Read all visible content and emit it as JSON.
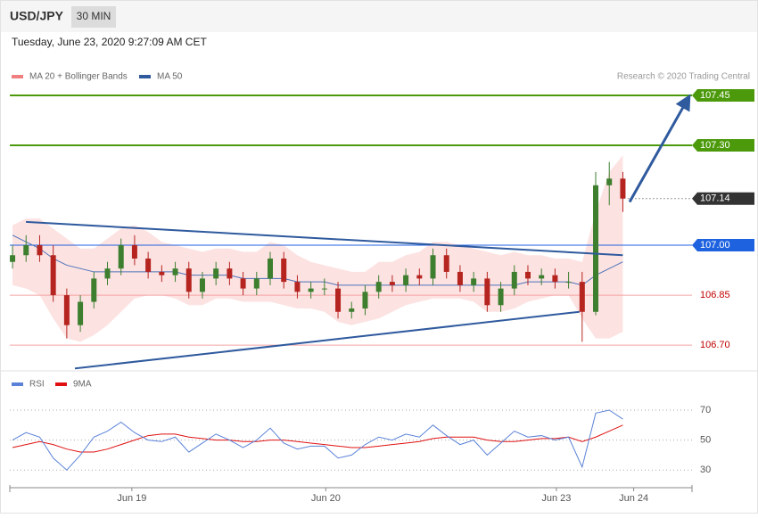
{
  "chart_data": {
    "type": "candlestick",
    "title": "USD/JPY",
    "timeframe": "30 MIN",
    "subtitle": "Tuesday, June 23, 2020 9:27:09 AM CET",
    "credit": "Research © 2020 Trading Central",
    "legend": [
      {
        "name": "MA 20 + Bollinger Bands",
        "color": "#f08080"
      },
      {
        "name": "MA 50",
        "color": "#2f5a9e"
      }
    ],
    "up_color": "#3d7f2f",
    "down_color": "#b5241f",
    "band_color": "#fde2e2",
    "ma50_color": "#4a72b8",
    "xlim": [
      -0.2,
      50.1
    ],
    "xticks": [
      {
        "value": 8.8,
        "label": "Jun 19"
      },
      {
        "value": 23.1,
        "label": "Jun 20"
      },
      {
        "value": 40.1,
        "label": "Jun 23"
      },
      {
        "value": 45.8,
        "label": "Jun 24"
      }
    ],
    "ylim": [
      106.62,
      107.49
    ],
    "open": [
      106.95,
      106.97,
      107.0,
      106.97,
      106.85,
      106.76,
      106.83,
      106.9,
      106.93,
      107.0,
      106.96,
      106.92,
      106.91,
      106.93,
      106.86,
      106.9,
      106.93,
      106.9,
      106.87,
      106.9,
      106.96,
      106.89,
      106.86,
      106.87,
      106.87,
      106.8,
      106.81,
      106.86,
      106.89,
      106.88,
      106.91,
      106.9,
      106.97,
      106.92,
      106.88,
      106.9,
      106.82,
      106.87,
      106.92,
      106.9,
      106.91,
      106.89,
      106.89,
      106.8,
      107.18,
      107.2
    ],
    "high": [
      107.0,
      107.03,
      107.03,
      107.0,
      106.87,
      106.85,
      106.92,
      106.95,
      107.02,
      107.03,
      106.98,
      106.94,
      106.95,
      106.95,
      106.92,
      106.95,
      106.95,
      106.92,
      106.92,
      106.98,
      106.98,
      106.91,
      106.89,
      106.9,
      106.89,
      106.83,
      106.88,
      106.91,
      106.91,
      106.93,
      106.93,
      106.99,
      106.99,
      106.94,
      106.92,
      106.92,
      106.89,
      106.94,
      106.94,
      106.93,
      106.93,
      106.92,
      106.92,
      107.22,
      107.25,
      107.22
    ],
    "low": [
      106.93,
      106.95,
      106.95,
      106.83,
      106.72,
      106.74,
      106.81,
      106.88,
      106.91,
      106.94,
      106.9,
      106.89,
      106.89,
      106.84,
      106.84,
      106.88,
      106.88,
      106.85,
      106.85,
      106.88,
      106.87,
      106.84,
      106.84,
      106.85,
      106.78,
      106.78,
      106.79,
      106.84,
      106.86,
      106.86,
      106.88,
      106.88,
      106.9,
      106.86,
      106.86,
      106.8,
      106.8,
      106.85,
      106.88,
      106.88,
      106.87,
      106.87,
      106.71,
      106.79,
      107.12,
      107.1
    ],
    "close": [
      106.97,
      107.0,
      106.97,
      106.85,
      106.76,
      106.83,
      106.9,
      106.93,
      107.0,
      106.96,
      106.92,
      106.91,
      106.93,
      106.86,
      106.9,
      106.93,
      106.9,
      106.87,
      106.9,
      106.96,
      106.89,
      106.86,
      106.87,
      106.87,
      106.8,
      106.81,
      106.86,
      106.89,
      106.88,
      106.91,
      106.9,
      106.97,
      106.92,
      106.88,
      106.9,
      106.82,
      106.87,
      106.92,
      106.9,
      106.91,
      106.89,
      106.89,
      106.8,
      107.18,
      107.2,
      107.14
    ],
    "band_upper": [
      107.06,
      107.08,
      107.08,
      107.05,
      107.02,
      106.99,
      106.99,
      107.02,
      107.05,
      107.06,
      107.04,
      107.01,
      107.0,
      106.99,
      106.98,
      106.99,
      106.99,
      106.98,
      106.98,
      107.01,
      107.0,
      106.97,
      106.95,
      106.94,
      106.93,
      106.92,
      106.92,
      106.95,
      106.95,
      106.97,
      106.98,
      107.01,
      107.01,
      107.0,
      106.99,
      106.98,
      106.97,
      106.98,
      106.97,
      106.97,
      106.96,
      106.96,
      106.95,
      107.1,
      107.22,
      107.27
    ],
    "band_lower": [
      106.88,
      106.87,
      106.85,
      106.78,
      106.72,
      106.71,
      106.73,
      106.76,
      106.8,
      106.84,
      106.85,
      106.85,
      106.84,
      106.82,
      106.82,
      106.84,
      106.84,
      106.83,
      106.83,
      106.83,
      106.82,
      106.81,
      106.81,
      106.8,
      106.77,
      106.76,
      106.77,
      106.78,
      106.8,
      106.82,
      106.83,
      106.84,
      106.84,
      106.84,
      106.83,
      106.8,
      106.8,
      106.81,
      106.83,
      106.84,
      106.85,
      106.85,
      106.78,
      106.72,
      106.72,
      106.74
    ],
    "ma50": [
      107.03,
      107.01,
      106.99,
      106.96,
      106.94,
      106.93,
      106.92,
      106.92,
      106.92,
      106.92,
      106.92,
      106.92,
      106.92,
      106.91,
      106.91,
      106.91,
      106.91,
      106.9,
      106.9,
      106.9,
      106.9,
      106.89,
      106.89,
      106.89,
      106.88,
      106.88,
      106.88,
      106.88,
      106.88,
      106.88,
      106.88,
      106.88,
      106.88,
      106.88,
      106.88,
      106.88,
      106.88,
      106.88,
      106.89,
      106.89,
      106.89,
      106.89,
      106.88,
      106.91,
      106.93,
      106.95
    ],
    "levels": [
      {
        "value": 107.45,
        "label": "107.45",
        "color": "#4c9a0c",
        "boxed": true
      },
      {
        "value": 107.3,
        "label": "107.30",
        "color": "#4c9a0c",
        "boxed": true
      },
      {
        "value": 107.14,
        "label": "107.14",
        "color": "#333333",
        "boxed": true
      },
      {
        "value": 107.0,
        "label": "107.00",
        "color": "#1f62e0",
        "boxed": true
      },
      {
        "value": 106.85,
        "label": "106.85",
        "color": "#f4a3a3",
        "boxed": false
      },
      {
        "value": 106.7,
        "label": "106.70",
        "color": "#f4a3a3",
        "boxed": false
      }
    ],
    "trendlines": [
      {
        "x": [
          0.99,
          45
        ],
        "y": [
          107.07,
          106.97
        ],
        "color": "#2f5a9e"
      },
      {
        "x": [
          4.6,
          41.8
        ],
        "y": [
          106.63,
          106.8
        ],
        "color": "#2f5a9e"
      },
      {
        "x": [
          45.5,
          49.8
        ],
        "y": [
          107.13,
          107.44
        ],
        "color": "#2f5a9e",
        "arrow": true
      }
    ],
    "rsi": {
      "ylim": [
        20,
        83.7
      ],
      "yticks": [
        30,
        50,
        70
      ],
      "series": [
        {
          "name": "RSI",
          "color": "#5a82d8",
          "values": [
            50,
            55,
            52,
            38,
            30,
            40,
            52,
            56,
            62,
            55,
            50,
            49,
            52,
            42,
            48,
            54,
            50,
            45,
            50,
            58,
            48,
            44,
            46,
            46,
            38,
            40,
            47,
            52,
            50,
            54,
            52,
            60,
            53,
            47,
            50,
            40,
            48,
            56,
            52,
            53,
            50,
            52,
            32,
            68,
            70,
            64
          ]
        },
        {
          "name": "9MA",
          "color": "#e01010",
          "values": [
            45,
            47,
            49,
            47,
            44,
            42,
            42,
            44,
            47,
            50,
            53,
            54,
            54,
            52,
            51,
            50,
            50,
            49,
            49,
            50,
            50,
            49,
            48,
            47,
            46,
            45,
            45,
            46,
            47,
            48,
            49,
            51,
            52,
            52,
            52,
            50,
            49,
            49,
            50,
            51,
            51,
            52,
            49,
            52,
            56,
            60
          ]
        }
      ]
    }
  }
}
